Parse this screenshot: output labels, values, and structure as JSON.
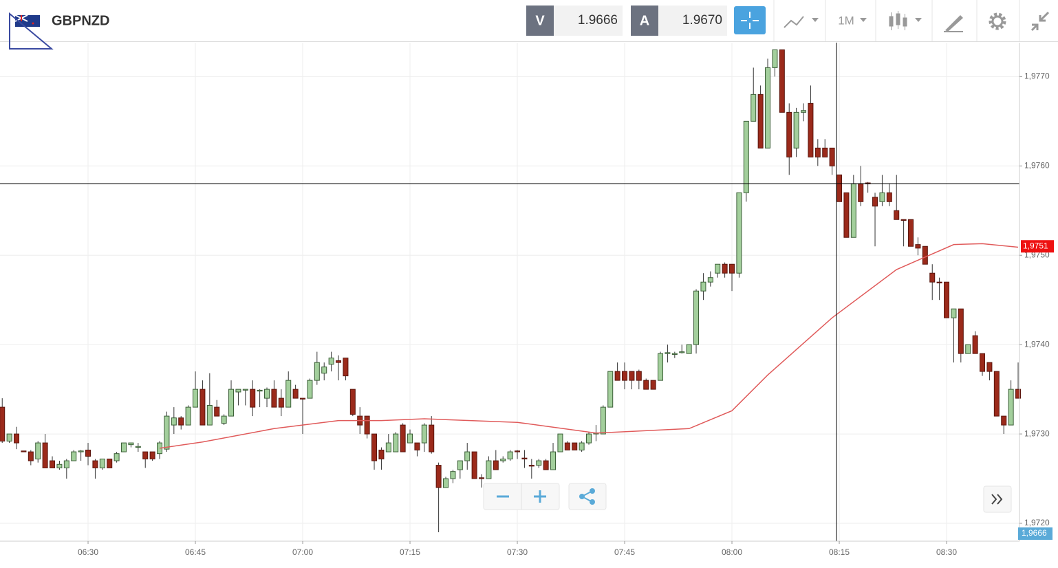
{
  "toolbar": {
    "symbol": "GBPNZD",
    "sell_label": "V",
    "sell_price": "1.9666",
    "buy_label": "A",
    "buy_price": "1.9670",
    "timeframe": "1M"
  },
  "chart_data": {
    "type": "candlestick",
    "xlim": [
      377.69,
      520.19
    ],
    "ylim": [
      1.9718,
      1.97738
    ],
    "xticks": [
      {
        "value": 390,
        "label": "06:30"
      },
      {
        "value": 405,
        "label": "06:45"
      },
      {
        "value": 420,
        "label": "07:00"
      },
      {
        "value": 435,
        "label": "07:15"
      },
      {
        "value": 450,
        "label": "07:30"
      },
      {
        "value": 465,
        "label": "07:45"
      },
      {
        "value": 480,
        "label": "08:00"
      },
      {
        "value": 495,
        "label": "08:15"
      },
      {
        "value": 510,
        "label": "08:30"
      }
    ],
    "yticks": [
      {
        "value": 1.972,
        "label": "1,9720"
      },
      {
        "value": 1.973,
        "label": "1,9730"
      },
      {
        "value": 1.974,
        "label": "1,9740"
      },
      {
        "value": 1.975,
        "label": "1,9750"
      },
      {
        "value": 1.976,
        "label": "1,9760"
      },
      {
        "value": 1.977,
        "label": "1,9770"
      }
    ],
    "grid": true,
    "up_color": "#a3cf9c",
    "down_color": "#9b2a1b",
    "x": [
      378,
      379,
      380,
      381,
      382,
      383,
      384,
      385,
      386,
      387,
      388,
      389,
      390,
      391,
      392,
      393,
      394,
      395,
      396,
      397,
      398,
      399,
      400,
      401,
      402,
      403,
      404,
      405,
      406,
      407,
      408,
      409,
      410,
      411,
      412,
      413,
      414,
      415,
      416,
      417,
      418,
      419,
      420,
      421,
      422,
      423,
      424,
      425,
      426,
      427,
      428,
      429,
      430,
      431,
      432,
      433,
      434,
      435,
      436,
      437,
      438,
      439,
      440,
      441,
      442,
      443,
      444,
      445,
      446,
      447,
      448,
      449,
      450,
      451,
      452,
      453,
      454,
      455,
      456,
      457,
      458,
      459,
      460,
      461,
      462,
      463,
      464,
      465,
      466,
      467,
      468,
      469,
      470,
      471,
      472,
      473,
      474,
      475,
      476,
      477,
      478,
      479,
      480,
      481,
      482,
      483,
      484,
      485,
      486,
      487,
      488,
      489,
      490,
      491,
      492,
      493,
      494,
      495,
      496,
      497,
      498,
      499,
      500,
      501,
      502,
      503,
      504,
      505,
      506,
      507,
      508,
      509,
      510,
      511,
      512,
      513,
      514,
      515,
      516,
      517,
      518,
      519,
      520
    ],
    "open": [
      1.9733,
      1.97292,
      1.973,
      1.97281,
      1.9728,
      1.97272,
      1.9729,
      1.9727,
      1.97262,
      1.97262,
      1.9727,
      1.9728,
      1.97282,
      1.9727,
      1.97262,
      1.97272,
      1.9727,
      1.9728,
      1.97288,
      1.97285,
      1.9728,
      1.9728,
      1.97278,
      1.97283,
      1.9731,
      1.97318,
      1.9731,
      1.9733,
      1.9735,
      1.9731,
      1.9733,
      1.97312,
      1.9732,
      1.97347,
      1.97349,
      1.9735,
      1.97348,
      1.9734,
      1.9735,
      1.9734,
      1.9733,
      1.9735,
      1.9734,
      1.9734,
      1.9736,
      1.97368,
      1.97378,
      1.97382,
      1.97385,
      1.9735,
      1.9732,
      1.9732,
      1.973,
      1.97282,
      1.9728,
      1.9728,
      1.9731,
      1.9729,
      1.9729,
      1.9729,
      1.9731,
      1.97265,
      1.9724,
      1.9725,
      1.9726,
      1.9727,
      1.9728,
      1.97251,
      1.9725,
      1.9727,
      1.9727,
      1.97272,
      1.97281,
      1.97273,
      1.97265,
      1.97265,
      1.9727,
      1.9726,
      1.9728,
      1.9729,
      1.9729,
      1.97282,
      1.9729,
      1.973,
      1.973,
      1.9733,
      1.9737,
      1.9737,
      1.9737,
      1.9737,
      1.9736,
      1.9736,
      1.9736,
      1.9739,
      1.97389,
      1.97391,
      1.9739,
      1.974,
      1.9746,
      1.9747,
      1.9748,
      1.9749,
      1.9749,
      1.9748,
      1.9757,
      1.9765,
      1.9768,
      1.9762,
      1.9771,
      1.9773,
      1.9766,
      1.9762,
      1.9766,
      1.9767,
      1.9762,
      1.9762,
      1.9762,
      1.9759,
      1.9757,
      1.9752,
      1.9758,
      1.97581,
      1.97565,
      1.9756,
      1.9757,
      1.9755,
      1.9754,
      1.9754,
      1.97512,
      1.9751,
      1.9748,
      1.9747,
      1.9747,
      1.9743,
      1.9744,
      1.9739,
      1.9741,
      1.9739,
      1.9738,
      1.9737,
      1.9732,
      1.9731,
      1.9735
    ],
    "high": [
      1.9734,
      1.973,
      1.97308,
      1.97281,
      1.97282,
      1.97292,
      1.973,
      1.97275,
      1.9727,
      1.97272,
      1.97282,
      1.97282,
      1.9729,
      1.97272,
      1.97272,
      1.97272,
      1.9728,
      1.9729,
      1.9729,
      1.9729,
      1.9728,
      1.9728,
      1.97292,
      1.97325,
      1.9733,
      1.9732,
      1.97332,
      1.9737,
      1.9736,
      1.97368,
      1.97338,
      1.97322,
      1.9736,
      1.9735,
      1.9735,
      1.9736,
      1.9735,
      1.97352,
      1.9736,
      1.9735,
      1.9737,
      1.97355,
      1.9734,
      1.97362,
      1.97392,
      1.9738,
      1.97392,
      1.97388,
      1.97385,
      1.9735,
      1.9733,
      1.9732,
      1.973,
      1.97285,
      1.973,
      1.97302,
      1.97312,
      1.97305,
      1.9729,
      1.97312,
      1.9732,
      1.97268,
      1.97252,
      1.9726,
      1.9727,
      1.9729,
      1.9728,
      1.97255,
      1.97275,
      1.97282,
      1.97275,
      1.97282,
      1.97282,
      1.97282,
      1.97272,
      1.97272,
      1.97272,
      1.9729,
      1.973,
      1.97292,
      1.9729,
      1.97292,
      1.97302,
      1.9731,
      1.97332,
      1.9737,
      1.9738,
      1.9738,
      1.9737,
      1.97372,
      1.97362,
      1.9736,
      1.97392,
      1.974,
      1.97392,
      1.974,
      1.974,
      1.97462,
      1.9748,
      1.97482,
      1.9749,
      1.97492,
      1.9749,
      1.9757,
      1.9765,
      1.9771,
      1.9769,
      1.9772,
      1.9773,
      1.9773,
      1.9767,
      1.97665,
      1.9767,
      1.9769,
      1.9763,
      1.9763,
      1.9762,
      1.9759,
      1.9757,
      1.9759,
      1.976,
      1.97582,
      1.9757,
      1.9759,
      1.9758,
      1.9759,
      1.9754,
      1.9754,
      1.9752,
      1.9751,
      1.9749,
      1.97475,
      1.9747,
      1.9744,
      1.9744,
      1.974,
      1.97415,
      1.9739,
      1.9738,
      1.9737,
      1.9732,
      1.9736,
      1.9738
    ],
    "low": [
      1.9729,
      1.9729,
      1.97283,
      1.9728,
      1.97265,
      1.97268,
      1.97262,
      1.97262,
      1.9726,
      1.9725,
      1.9727,
      1.9727,
      1.97265,
      1.9725,
      1.9726,
      1.97262,
      1.97268,
      1.9728,
      1.97285,
      1.9728,
      1.97262,
      1.9727,
      1.97272,
      1.9728,
      1.973,
      1.97305,
      1.9731,
      1.9733,
      1.9731,
      1.9731,
      1.9732,
      1.9731,
      1.9732,
      1.97332,
      1.97332,
      1.9732,
      1.9733,
      1.9733,
      1.9733,
      1.9732,
      1.9733,
      1.9734,
      1.973,
      1.9734,
      1.97355,
      1.9736,
      1.9737,
      1.9736,
      1.9736,
      1.9732,
      1.973,
      1.97295,
      1.9726,
      1.9726,
      1.9728,
      1.9728,
      1.9728,
      1.9729,
      1.97275,
      1.9728,
      1.97278,
      1.9719,
      1.9724,
      1.97245,
      1.9725,
      1.9726,
      1.9725,
      1.9724,
      1.9725,
      1.9726,
      1.97268,
      1.9727,
      1.97272,
      1.97262,
      1.9725,
      1.97262,
      1.9726,
      1.9726,
      1.9728,
      1.97282,
      1.97282,
      1.9728,
      1.97288,
      1.97292,
      1.973,
      1.9733,
      1.9736,
      1.9735,
      1.9735,
      1.9735,
      1.9735,
      1.9735,
      1.9736,
      1.9738,
      1.97385,
      1.9739,
      1.9739,
      1.9739,
      1.9745,
      1.97465,
      1.97475,
      1.97475,
      1.9746,
      1.97475,
      1.9756,
      1.9765,
      1.9762,
      1.9762,
      1.977,
      1.9766,
      1.9759,
      1.9761,
      1.9765,
      1.9761,
      1.976,
      1.9761,
      1.9759,
      1.9756,
      1.9752,
      1.9752,
      1.97555,
      1.9757,
      1.9751,
      1.97555,
      1.97555,
      1.9754,
      1.9751,
      1.9751,
      1.975,
      1.9749,
      1.9745,
      1.9745,
      1.9743,
      1.9738,
      1.9738,
      1.9739,
      1.9739,
      1.97365,
      1.9736,
      1.9732,
      1.973,
      1.9731,
      1.9734
    ],
    "close": [
      1.97292,
      1.973,
      1.9729,
      1.9728,
      1.9727,
      1.9729,
      1.97262,
      1.97262,
      1.97266,
      1.9727,
      1.9728,
      1.97281,
      1.97275,
      1.97262,
      1.97272,
      1.97262,
      1.97278,
      1.9729,
      1.9729,
      1.97286,
      1.97272,
      1.97272,
      1.9729,
      1.9732,
      1.97318,
      1.9731,
      1.9733,
      1.9735,
      1.9731,
      1.97332,
      1.9732,
      1.9732,
      1.9735,
      1.9735,
      1.9735,
      1.9733,
      1.97349,
      1.9735,
      1.9733,
      1.9733,
      1.9736,
      1.9734,
      1.97339,
      1.9736,
      1.9738,
      1.97375,
      1.97385,
      1.9738,
      1.97365,
      1.97322,
      1.9731,
      1.973,
      1.9727,
      1.97272,
      1.9729,
      1.973,
      1.9728,
      1.973,
      1.97282,
      1.9731,
      1.9728,
      1.9724,
      1.9725,
      1.97258,
      1.9727,
      1.9728,
      1.9725,
      1.9725,
      1.9727,
      1.9726,
      1.97272,
      1.9728,
      1.9728,
      1.97272,
      1.97264,
      1.9727,
      1.9726,
      1.9728,
      1.973,
      1.97282,
      1.97282,
      1.9729,
      1.973,
      1.97301,
      1.9733,
      1.9737,
      1.9736,
      1.9736,
      1.9736,
      1.9736,
      1.9735,
      1.9735,
      1.9739,
      1.97391,
      1.9739,
      1.97392,
      1.974,
      1.9746,
      1.9747,
      1.97475,
      1.9749,
      1.9748,
      1.9748,
      1.9757,
      1.9765,
      1.9768,
      1.9762,
      1.9771,
      1.9773,
      1.9766,
      1.9761,
      1.9766,
      1.97662,
      1.9761,
      1.9761,
      1.9761,
      1.976,
      1.9756,
      1.9752,
      1.9758,
      1.9756,
      1.9758,
      1.97555,
      1.9757,
      1.9756,
      1.9754,
      1.97539,
      1.9751,
      1.97508,
      1.9749,
      1.9747,
      1.97469,
      1.9743,
      1.9744,
      1.9739,
      1.974,
      1.9739,
      1.9737,
      1.9737,
      1.9732,
      1.9731,
      1.9735,
      1.9734
    ],
    "moving_average": {
      "color": "#e05a5a",
      "x": [
        400,
        406,
        416,
        425,
        431,
        437,
        450,
        461,
        474,
        480,
        485,
        494,
        503,
        511,
        515,
        520
      ],
      "values": [
        1.97284,
        1.97291,
        1.97306,
        1.97315,
        1.97315,
        1.97317,
        1.97313,
        1.97301,
        1.97306,
        1.97326,
        1.97366,
        1.9743,
        1.97484,
        1.97512,
        1.97513,
        1.97509
      ]
    },
    "ma_marker": {
      "value": 1.9751,
      "label": "1,9751",
      "color": "#ee1111"
    },
    "bid_marker": {
      "label": "1,9666",
      "color": "#5aaad8"
    }
  }
}
